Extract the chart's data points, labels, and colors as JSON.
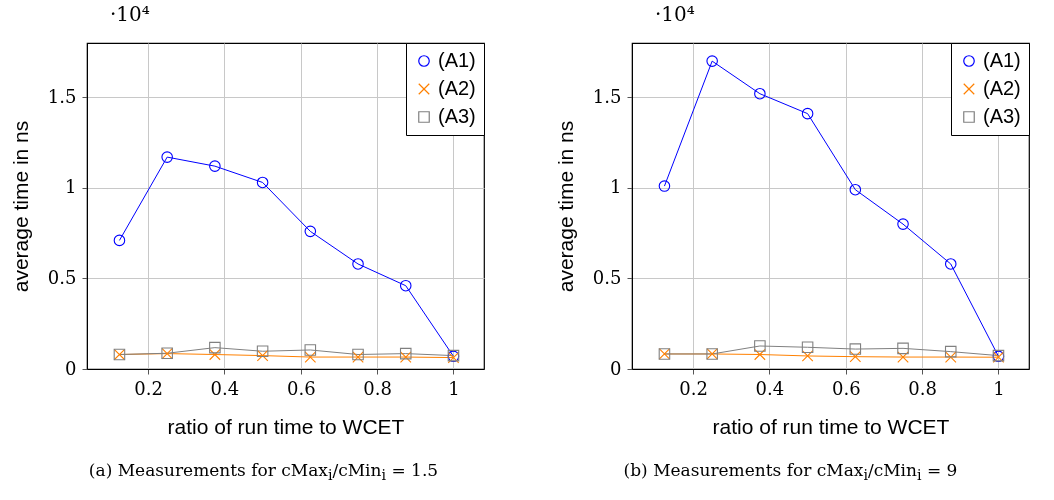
{
  "chart_data": [
    {
      "type": "line",
      "xlabel": "ratio of run time to WCET",
      "ylabel": "average time in ns",
      "annotations": [
        "·10⁴",
        "(a) Measurements for cMax$_{i}$/cMin$_{i}$ = 1.5"
      ],
      "x": [
        0.125,
        0.25,
        0.375,
        0.5,
        0.625,
        0.75,
        0.875,
        1
      ],
      "xlim": [
        0.04,
        1.08
      ],
      "ylim": [
        0,
        1.8
      ],
      "xticks": [
        0.2,
        0.4,
        0.6,
        0.8,
        1
      ],
      "yticks": [
        0,
        0.5,
        1,
        1.5
      ],
      "grid": true,
      "legend": "top right",
      "series": [
        {
          "name": "(A1)",
          "color": "#0000ff",
          "marker": "circle",
          "values": [
            0.71,
            1.17,
            1.12,
            1.03,
            0.76,
            0.58,
            0.46,
            0.07
          ]
        },
        {
          "name": "(A2)",
          "color": "#ff8000",
          "marker": "cross",
          "values": [
            0.08,
            0.085,
            0.08,
            0.074,
            0.066,
            0.066,
            0.066,
            0.063
          ]
        },
        {
          "name": "(A3)",
          "color": "#808080",
          "marker": "square",
          "values": [
            0.08,
            0.087,
            0.118,
            0.098,
            0.105,
            0.08,
            0.085,
            0.074
          ]
        }
      ]
    },
    {
      "type": "line",
      "xlabel": "ratio of run time to WCET",
      "ylabel": "average time in ns",
      "annotations": [
        "·10⁴",
        "(b) Measurements for cMax$_{i}$/cMin$_{i}$ = 9"
      ],
      "x": [
        0.125,
        0.25,
        0.375,
        0.5,
        0.625,
        0.75,
        0.875,
        1
      ],
      "xlim": [
        0.04,
        1.08
      ],
      "ylim": [
        0,
        1.8
      ],
      "xticks": [
        0.2,
        0.4,
        0.6,
        0.8,
        1
      ],
      "yticks": [
        0,
        0.5,
        1,
        1.5
      ],
      "grid": true,
      "legend": "top right",
      "series": [
        {
          "name": "(A1)",
          "color": "#0000ff",
          "marker": "circle",
          "values": [
            1.01,
            1.7,
            1.52,
            1.41,
            0.99,
            0.8,
            0.58,
            0.07
          ]
        },
        {
          "name": "(A2)",
          "color": "#ff8000",
          "marker": "cross",
          "values": [
            0.083,
            0.083,
            0.08,
            0.072,
            0.068,
            0.066,
            0.066,
            0.065
          ]
        },
        {
          "name": "(A3)",
          "color": "#808080",
          "marker": "square",
          "values": [
            0.083,
            0.083,
            0.127,
            0.12,
            0.11,
            0.114,
            0.096,
            0.074
          ]
        }
      ]
    }
  ]
}
